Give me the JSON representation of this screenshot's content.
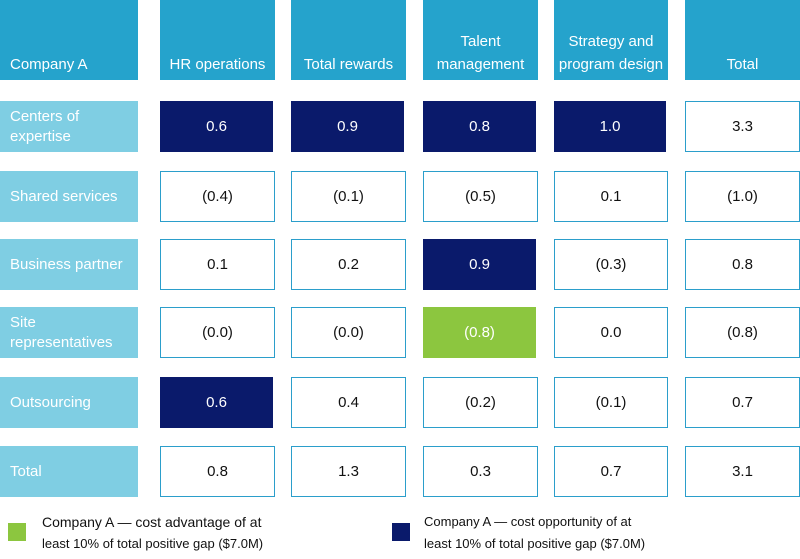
{
  "chart_data": {
    "type": "table",
    "corner_label": "Company A",
    "columns": [
      "HR operations",
      "Total rewards",
      "Talent management",
      "Strategy and program design",
      "Total"
    ],
    "rows": [
      {
        "label": "Centers of expertise",
        "values": [
          "0.6",
          "0.9",
          "0.8",
          "1.0",
          "3.3"
        ],
        "highlight": [
          "opportunity",
          "opportunity",
          "opportunity",
          "opportunity",
          "none"
        ]
      },
      {
        "label": "Shared services",
        "values": [
          "(0.4)",
          "(0.1)",
          "(0.5)",
          "0.1",
          "(1.0)"
        ],
        "highlight": [
          "none",
          "none",
          "none",
          "none",
          "none"
        ]
      },
      {
        "label": "Business partner",
        "values": [
          "0.1",
          "0.2",
          "0.9",
          "(0.3)",
          "0.8"
        ],
        "highlight": [
          "none",
          "none",
          "opportunity",
          "none",
          "none"
        ]
      },
      {
        "label": "Site representatives",
        "values": [
          "(0.0)",
          "(0.0)",
          "(0.8)",
          "0.0",
          "(0.8)"
        ],
        "highlight": [
          "none",
          "none",
          "advantage",
          "none",
          "none"
        ]
      },
      {
        "label": "Outsourcing",
        "values": [
          "0.6",
          "0.4",
          "(0.2)",
          "(0.1)",
          "0.7"
        ],
        "highlight": [
          "opportunity",
          "none",
          "none",
          "none",
          "none"
        ]
      },
      {
        "label": "Total",
        "values": [
          "0.8",
          "1.3",
          "0.3",
          "0.7",
          "3.1"
        ],
        "highlight": [
          "none",
          "none",
          "none",
          "none",
          "none"
        ]
      }
    ],
    "legend": [
      {
        "key": "advantage",
        "label_line1": "Company A — cost advantage of at",
        "label_line2": "least 10% of total positive gap ($7.0M)",
        "color": "#8cc63f"
      },
      {
        "key": "opportunity",
        "label_line1": "Company A — cost opportunity of at",
        "label_line2": "least 10% of total positive gap ($7.0M)",
        "color": "#0a1a6b"
      }
    ]
  },
  "colors": {
    "header": "#25a3cc",
    "row_label": "#7fcee3",
    "cell_border": "#2b9ecb"
  }
}
